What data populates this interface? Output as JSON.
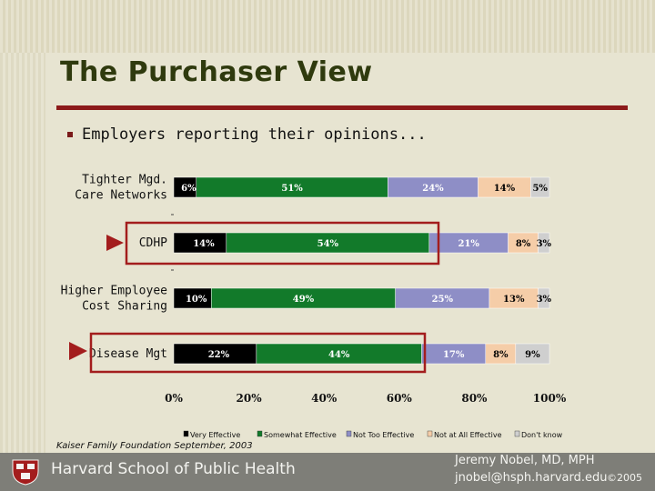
{
  "slide": {
    "title": "The Purchaser View",
    "bullet": "Employers reporting their opinions...",
    "source": "Kaiser Family Foundation September, 2003",
    "footer": {
      "school": "Harvard School of Public Health",
      "author": "Jeremy Nobel, MD, MPH",
      "email": "jnobel@hsph.harvard.edu",
      "copyright": "©2005"
    },
    "colors": {
      "title": "#2f3a0e",
      "rule": "#8c1a1a",
      "highlight_box": "#a31d1d",
      "arrow": "#a31d1d",
      "footer_bg": "#7e7e78"
    }
  },
  "chart_data": {
    "type": "bar",
    "orientation": "horizontal",
    "stacked": true,
    "percent_stacked": true,
    "categories": [
      "Tighter Mgd. Care Networks",
      "CDHP",
      "Higher Employee Cost Sharing",
      "Disease Mgt"
    ],
    "category_label_lines": [
      [
        "Tighter Mgd.",
        "Care Networks"
      ],
      [
        "CDHP"
      ],
      [
        "Higher Employee",
        "Cost Sharing"
      ],
      [
        "Disease Mgt"
      ]
    ],
    "series": [
      {
        "name": "Very Effective",
        "color": "#000000",
        "label_color": "#ffffff",
        "values": [
          6,
          14,
          10,
          22
        ]
      },
      {
        "name": "Somewhat Effective",
        "color": "#127a2a",
        "label_color": "#ffffff",
        "values": [
          51,
          54,
          49,
          44
        ]
      },
      {
        "name": "Not Too Effective",
        "color": "#8e8ec6",
        "label_color": "#ffffff",
        "values": [
          24,
          21,
          25,
          17
        ]
      },
      {
        "name": "Not at All Effective",
        "color": "#f5cda8",
        "label_color": "#000000",
        "values": [
          14,
          8,
          13,
          8
        ]
      },
      {
        "name": "Don't know",
        "color": "#cfcfcf",
        "label_color": "#000000",
        "values": [
          5,
          3,
          3,
          9
        ]
      }
    ],
    "data_labels": [
      [
        "6%",
        "51%",
        "24%",
        "14%",
        "5%"
      ],
      [
        "14%",
        "54%",
        "21%",
        "8%",
        "3%"
      ],
      [
        "10%",
        "49%",
        "25%",
        "13%",
        "3%"
      ],
      [
        "22%",
        "44%",
        "17%",
        "8%",
        "9%"
      ]
    ],
    "x_ticks": [
      "0%",
      "20%",
      "40%",
      "60%",
      "80%",
      "100%"
    ],
    "xlim": [
      0,
      100
    ],
    "legend_position": "bottom",
    "highlighted_categories": [
      "CDHP",
      "Disease Mgt"
    ]
  }
}
